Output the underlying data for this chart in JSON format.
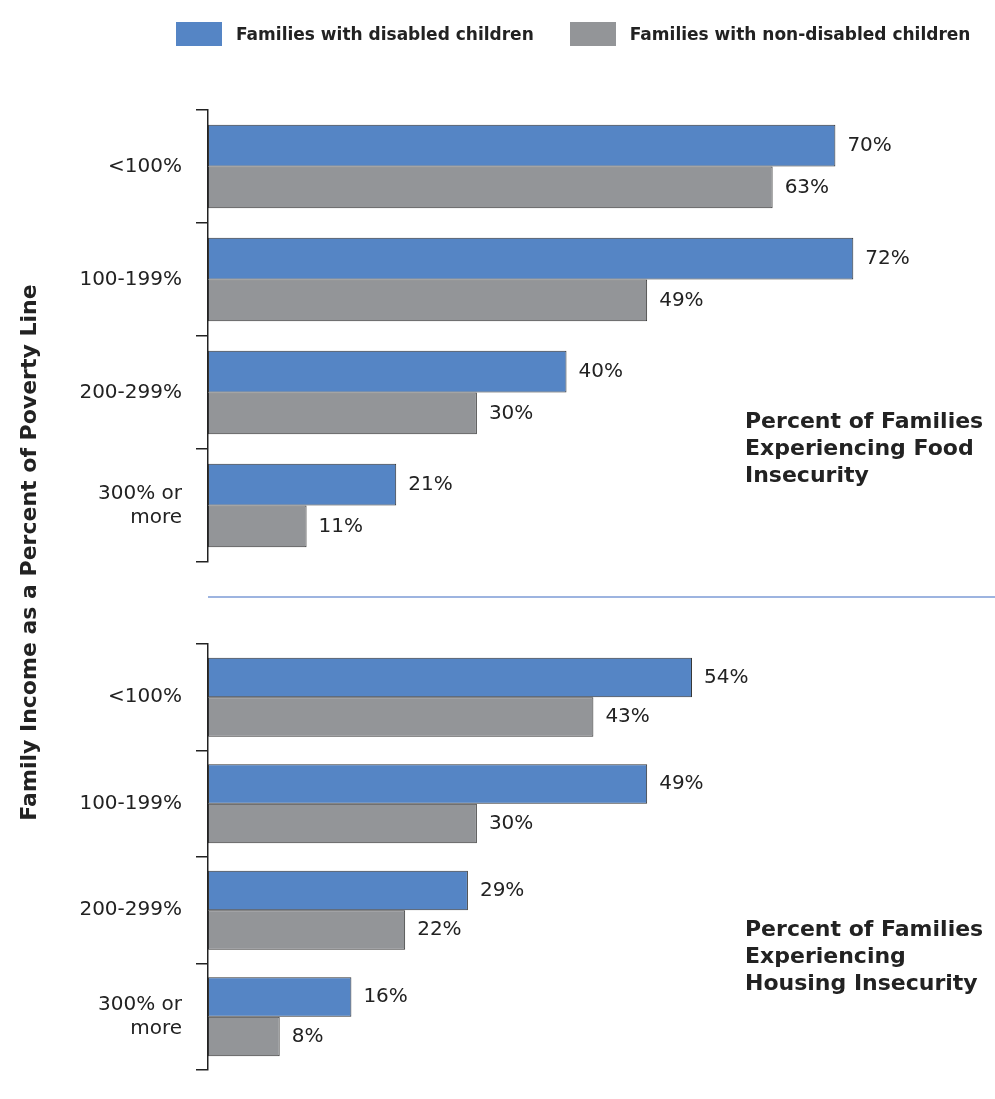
{
  "chart_data": [
    {
      "type": "bar",
      "orientation": "horizontal",
      "title": "Percent of Families Experiencing Food Insecurity",
      "ylabel": "Family Income as a Percent of Poverty Line",
      "categories": [
        "<100%",
        "100-199%",
        "200-299%",
        "300% or more"
      ],
      "series": [
        {
          "name": "Families with disabled children",
          "color": "#5585c5",
          "values": [
            70,
            72,
            40,
            21
          ],
          "value_labels": [
            "70%",
            "72%",
            "40%",
            "21%"
          ]
        },
        {
          "name": "Families with non-disabled children",
          "color": "#939598",
          "values": [
            63,
            49,
            30,
            11
          ],
          "value_labels": [
            "63%",
            "49%",
            "30%",
            "11%"
          ]
        }
      ],
      "tick_labels": "y",
      "legend": "top"
    },
    {
      "type": "bar",
      "orientation": "horizontal",
      "annotations": [
        "Percent of Families Experiencing Housing Insecurity"
      ],
      "categories": [
        "<100%",
        "100-199%",
        "200-299%",
        "300% or more"
      ],
      "series": [
        {
          "color": "#5585c5",
          "values": [
            54,
            49,
            29,
            16
          ],
          "value_labels": [
            "54%",
            "49%",
            "29%",
            "16%"
          ]
        },
        {
          "color": "#939598",
          "values": [
            43,
            30,
            22,
            8
          ],
          "value_labels": [
            "43%",
            "30%",
            "22%",
            "8%"
          ]
        }
      ],
      "tick_labels": "y",
      "legend": false
    }
  ]
}
